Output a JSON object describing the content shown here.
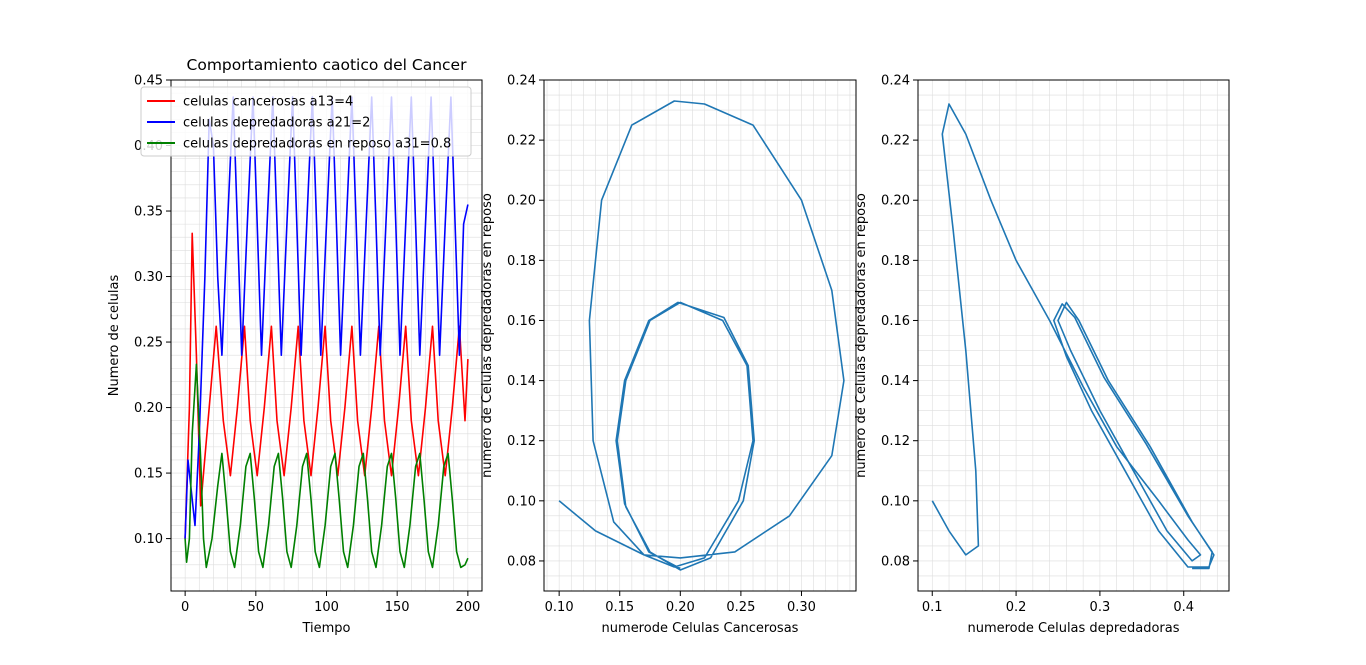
{
  "chart_data": [
    {
      "type": "line",
      "title": "Comportamiento caotico del Cancer",
      "xlabel": "Tiempo",
      "ylabel": "Numero de celulas",
      "xlim": [
        -10,
        210
      ],
      "ylim": [
        0.06,
        0.45
      ],
      "xticks": [
        "0",
        "50",
        "100",
        "150",
        "200"
      ],
      "yticks": [
        "0.10",
        "0.15",
        "0.20",
        "0.25",
        "0.30",
        "0.35",
        "0.40",
        "0.45"
      ],
      "grid": "minor",
      "legend_position": "upper-left",
      "series": [
        {
          "name": "celulas cancerosas a13=4",
          "color": "#ff0000",
          "values": [
            [
              0,
              0.1
            ],
            [
              3,
              0.2
            ],
            [
              5,
              0.333
            ],
            [
              8,
              0.24
            ],
            [
              11,
              0.125
            ],
            [
              17,
              0.2
            ],
            [
              22,
              0.262
            ],
            [
              27,
              0.19
            ],
            [
              32,
              0.148
            ],
            [
              37,
              0.2
            ],
            [
              42,
              0.262
            ],
            [
              46,
              0.19
            ],
            [
              51,
              0.148
            ],
            [
              56,
              0.2
            ],
            [
              61,
              0.262
            ],
            [
              65,
              0.19
            ],
            [
              70,
              0.148
            ],
            [
              75,
              0.2
            ],
            [
              80,
              0.262
            ],
            [
              84,
              0.19
            ],
            [
              89,
              0.148
            ],
            [
              94,
              0.2
            ],
            [
              99,
              0.262
            ],
            [
              103,
              0.19
            ],
            [
              108,
              0.148
            ],
            [
              113,
              0.2
            ],
            [
              118,
              0.262
            ],
            [
              122,
              0.19
            ],
            [
              127,
              0.148
            ],
            [
              132,
              0.2
            ],
            [
              137,
              0.262
            ],
            [
              141,
              0.19
            ],
            [
              146,
              0.148
            ],
            [
              151,
              0.2
            ],
            [
              156,
              0.262
            ],
            [
              160,
              0.19
            ],
            [
              165,
              0.148
            ],
            [
              170,
              0.2
            ],
            [
              175,
              0.262
            ],
            [
              179,
              0.19
            ],
            [
              184,
              0.148
            ],
            [
              189,
              0.2
            ],
            [
              194,
              0.262
            ],
            [
              198,
              0.19
            ],
            [
              200,
              0.237
            ]
          ]
        },
        {
          "name": "celulas depredadoras a21=2",
          "color": "#0000ff",
          "values": [
            [
              0,
              0.1
            ],
            [
              2,
              0.16
            ],
            [
              4,
              0.14
            ],
            [
              7,
              0.11
            ],
            [
              10,
              0.18
            ],
            [
              14,
              0.3
            ],
            [
              17,
              0.42
            ],
            [
              20,
              0.4
            ],
            [
              23,
              0.3
            ],
            [
              26,
              0.24
            ],
            [
              30,
              0.34
            ],
            [
              34,
              0.437
            ],
            [
              37,
              0.34
            ],
            [
              40,
              0.24
            ],
            [
              44,
              0.34
            ],
            [
              48,
              0.437
            ],
            [
              51,
              0.34
            ],
            [
              54,
              0.24
            ],
            [
              58,
              0.34
            ],
            [
              62,
              0.437
            ],
            [
              65,
              0.34
            ],
            [
              68,
              0.24
            ],
            [
              72,
              0.34
            ],
            [
              76,
              0.437
            ],
            [
              79,
              0.34
            ],
            [
              82,
              0.24
            ],
            [
              86,
              0.34
            ],
            [
              90,
              0.437
            ],
            [
              93,
              0.34
            ],
            [
              96,
              0.24
            ],
            [
              100,
              0.34
            ],
            [
              104,
              0.437
            ],
            [
              107,
              0.34
            ],
            [
              110,
              0.24
            ],
            [
              114,
              0.34
            ],
            [
              118,
              0.437
            ],
            [
              121,
              0.34
            ],
            [
              124,
              0.24
            ],
            [
              128,
              0.34
            ],
            [
              132,
              0.437
            ],
            [
              135,
              0.34
            ],
            [
              138,
              0.24
            ],
            [
              142,
              0.34
            ],
            [
              146,
              0.437
            ],
            [
              149,
              0.34
            ],
            [
              152,
              0.24
            ],
            [
              156,
              0.34
            ],
            [
              160,
              0.437
            ],
            [
              163,
              0.34
            ],
            [
              166,
              0.24
            ],
            [
              170,
              0.34
            ],
            [
              174,
              0.437
            ],
            [
              177,
              0.34
            ],
            [
              180,
              0.24
            ],
            [
              184,
              0.34
            ],
            [
              188,
              0.437
            ],
            [
              191,
              0.34
            ],
            [
              194,
              0.24
            ],
            [
              197,
              0.34
            ],
            [
              200,
              0.355
            ]
          ]
        },
        {
          "name": "celulas depredadoras en reposo a31=0.8",
          "color": "#008000",
          "values": [
            [
              0,
              0.1
            ],
            [
              1,
              0.082
            ],
            [
              3,
              0.1
            ],
            [
              5,
              0.18
            ],
            [
              8,
              0.233
            ],
            [
              11,
              0.16
            ],
            [
              13,
              0.1
            ],
            [
              15,
              0.078
            ],
            [
              19,
              0.1
            ],
            [
              23,
              0.14
            ],
            [
              26,
              0.165
            ],
            [
              29,
              0.13
            ],
            [
              32,
              0.09
            ],
            [
              35,
              0.078
            ],
            [
              39,
              0.11
            ],
            [
              43,
              0.155
            ],
            [
              46,
              0.165
            ],
            [
              49,
              0.13
            ],
            [
              52,
              0.09
            ],
            [
              55,
              0.078
            ],
            [
              59,
              0.11
            ],
            [
              63,
              0.155
            ],
            [
              66,
              0.165
            ],
            [
              69,
              0.13
            ],
            [
              72,
              0.09
            ],
            [
              75,
              0.078
            ],
            [
              79,
              0.11
            ],
            [
              83,
              0.155
            ],
            [
              86,
              0.165
            ],
            [
              89,
              0.13
            ],
            [
              92,
              0.09
            ],
            [
              95,
              0.078
            ],
            [
              99,
              0.11
            ],
            [
              103,
              0.155
            ],
            [
              106,
              0.165
            ],
            [
              109,
              0.13
            ],
            [
              112,
              0.09
            ],
            [
              115,
              0.078
            ],
            [
              119,
              0.11
            ],
            [
              123,
              0.155
            ],
            [
              126,
              0.165
            ],
            [
              129,
              0.13
            ],
            [
              132,
              0.09
            ],
            [
              135,
              0.078
            ],
            [
              139,
              0.11
            ],
            [
              143,
              0.155
            ],
            [
              146,
              0.165
            ],
            [
              149,
              0.13
            ],
            [
              152,
              0.09
            ],
            [
              155,
              0.078
            ],
            [
              159,
              0.11
            ],
            [
              163,
              0.155
            ],
            [
              166,
              0.165
            ],
            [
              169,
              0.13
            ],
            [
              172,
              0.09
            ],
            [
              175,
              0.078
            ],
            [
              179,
              0.11
            ],
            [
              183,
              0.155
            ],
            [
              186,
              0.165
            ],
            [
              189,
              0.13
            ],
            [
              192,
              0.09
            ],
            [
              195,
              0.078
            ],
            [
              198,
              0.08
            ],
            [
              200,
              0.085
            ]
          ]
        }
      ]
    },
    {
      "type": "line",
      "title": "",
      "xlabel": "numerode Celulas Cancerosas",
      "ylabel": "numero de Celulas depredadoras en reposo",
      "xlim": [
        0.0875,
        0.345
      ],
      "ylim": [
        0.07,
        0.24
      ],
      "xticks": [
        "0.10",
        "0.15",
        "0.20",
        "0.25",
        "0.30"
      ],
      "yticks": [
        "0.08",
        "0.10",
        "0.12",
        "0.14",
        "0.16",
        "0.18",
        "0.20",
        "0.22",
        "0.24"
      ],
      "grid": "minor",
      "series": [
        {
          "color": "#1f77b4",
          "values": [
            [
              0.1,
              0.1
            ],
            [
              0.13,
              0.09
            ],
            [
              0.17,
              0.082
            ],
            [
              0.2,
              0.081
            ],
            [
              0.245,
              0.083
            ],
            [
              0.29,
              0.095
            ],
            [
              0.325,
              0.115
            ],
            [
              0.335,
              0.14
            ],
            [
              0.325,
              0.17
            ],
            [
              0.3,
              0.2
            ],
            [
              0.26,
              0.225
            ],
            [
              0.22,
              0.232
            ],
            [
              0.195,
              0.233
            ],
            [
              0.16,
              0.225
            ],
            [
              0.135,
              0.2
            ],
            [
              0.125,
              0.16
            ],
            [
              0.128,
              0.12
            ],
            [
              0.145,
              0.093
            ],
            [
              0.17,
              0.082
            ],
            [
              0.195,
              0.078
            ],
            [
              0.22,
              0.081
            ],
            [
              0.248,
              0.1
            ],
            [
              0.26,
              0.12
            ],
            [
              0.255,
              0.145
            ],
            [
              0.235,
              0.16
            ],
            [
              0.2,
              0.166
            ],
            [
              0.175,
              0.16
            ],
            [
              0.155,
              0.14
            ],
            [
              0.148,
              0.12
            ],
            [
              0.155,
              0.098
            ],
            [
              0.175,
              0.083
            ],
            [
              0.2,
              0.077
            ],
            [
              0.225,
              0.081
            ],
            [
              0.252,
              0.1
            ],
            [
              0.261,
              0.12
            ],
            [
              0.256,
              0.145
            ],
            [
              0.236,
              0.161
            ],
            [
              0.198,
              0.166
            ],
            [
              0.174,
              0.16
            ],
            [
              0.154,
              0.14
            ],
            [
              0.147,
              0.12
            ],
            [
              0.154,
              0.099
            ],
            [
              0.174,
              0.083
            ],
            [
              0.2,
              0.0775
            ]
          ]
        }
      ]
    },
    {
      "type": "line",
      "title": "",
      "xlabel": "numerode Celulas depredadoras",
      "ylabel": "numero de Celulas depredadoras en reposo",
      "xlim": [
        0.083,
        0.454
      ],
      "ylim": [
        0.07,
        0.24
      ],
      "xticks": [
        "0.1",
        "0.2",
        "0.3",
        "0.4"
      ],
      "yticks": [
        "0.08",
        "0.10",
        "0.12",
        "0.14",
        "0.16",
        "0.18",
        "0.20",
        "0.22",
        "0.24"
      ],
      "grid": "minor",
      "series": [
        {
          "color": "#1f77b4",
          "values": [
            [
              0.1,
              0.1
            ],
            [
              0.12,
              0.09
            ],
            [
              0.14,
              0.082
            ],
            [
              0.155,
              0.085
            ],
            [
              0.152,
              0.11
            ],
            [
              0.14,
              0.15
            ],
            [
              0.125,
              0.19
            ],
            [
              0.112,
              0.222
            ],
            [
              0.12,
              0.232
            ],
            [
              0.14,
              0.222
            ],
            [
              0.17,
              0.2
            ],
            [
              0.2,
              0.18
            ],
            [
              0.24,
              0.16
            ],
            [
              0.28,
              0.138
            ],
            [
              0.32,
              0.118
            ],
            [
              0.37,
              0.1
            ],
            [
              0.405,
              0.087
            ],
            [
              0.42,
              0.082
            ],
            [
              0.41,
              0.08
            ],
            [
              0.38,
              0.09
            ],
            [
              0.34,
              0.11
            ],
            [
              0.3,
              0.13
            ],
            [
              0.265,
              0.15
            ],
            [
              0.25,
              0.16
            ],
            [
              0.26,
              0.166
            ],
            [
              0.275,
              0.16
            ],
            [
              0.31,
              0.14
            ],
            [
              0.36,
              0.118
            ],
            [
              0.41,
              0.093
            ],
            [
              0.436,
              0.082
            ],
            [
              0.43,
              0.078
            ],
            [
              0.405,
              0.078
            ],
            [
              0.37,
              0.09
            ],
            [
              0.33,
              0.11
            ],
            [
              0.29,
              0.13
            ],
            [
              0.26,
              0.148
            ],
            [
              0.245,
              0.16
            ],
            [
              0.255,
              0.1655
            ],
            [
              0.27,
              0.161
            ],
            [
              0.305,
              0.141
            ],
            [
              0.355,
              0.119
            ],
            [
              0.405,
              0.095
            ],
            [
              0.434,
              0.083
            ],
            [
              0.43,
              0.0775
            ],
            [
              0.41,
              0.0775
            ]
          ]
        }
      ]
    }
  ]
}
